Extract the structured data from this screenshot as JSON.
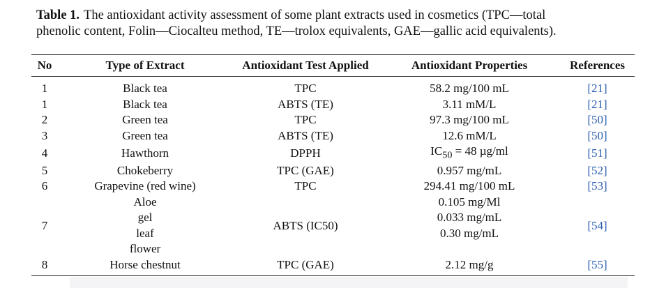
{
  "caption": {
    "label": "Table 1.",
    "lines": [
      "The antioxidant activity assessment of some plant extracts used in cosmetics (TPC—total",
      "phenolic content, Folin—Ciocalteu method, TE—trolox equivalents, GAE—gallic acid equivalents)."
    ]
  },
  "table": {
    "headers": [
      "No",
      "Type of Extract",
      "Antioxidant Test Applied",
      "Antioxidant Properties",
      "References"
    ],
    "rows": [
      [
        "1",
        "Black tea",
        "TPC",
        "58.2 mg/100 mL",
        "[21]"
      ],
      [
        "1",
        "Black tea",
        "ABTS (TE)",
        "3.11 mM/L",
        "[21]"
      ],
      [
        "2",
        "Green tea",
        "TPC",
        "97.3 mg/100 mL",
        "[50]"
      ],
      [
        "3",
        "Green tea",
        "ABTS (TE)",
        "12.6 mM/L",
        "[50]"
      ],
      [
        "4",
        "Hawthorn",
        "DPPH",
        {
          "base": "IC",
          "sub": "50",
          "rest": " = 48 µg/ml"
        },
        "[51]"
      ],
      [
        "5",
        "Chokeberry",
        "TPC (GAE)",
        "0.957 mg/mL",
        "[52]"
      ],
      [
        "6",
        "Grapevine (red wine)",
        "TPC",
        "294.41 mg/100 mL",
        "[53]"
      ],
      [
        "7",
        [
          "Aloe",
          "gel",
          "leaf",
          "flower"
        ],
        "ABTS (IC50)",
        [
          "0.105 mg/Ml",
          "0.033 mg/mL",
          "0.30 mg/mL"
        ],
        "[54]"
      ],
      [
        "8",
        "Horse chestnut",
        "TPC (GAE)",
        "2.12 mg/g",
        "[55]"
      ]
    ]
  }
}
